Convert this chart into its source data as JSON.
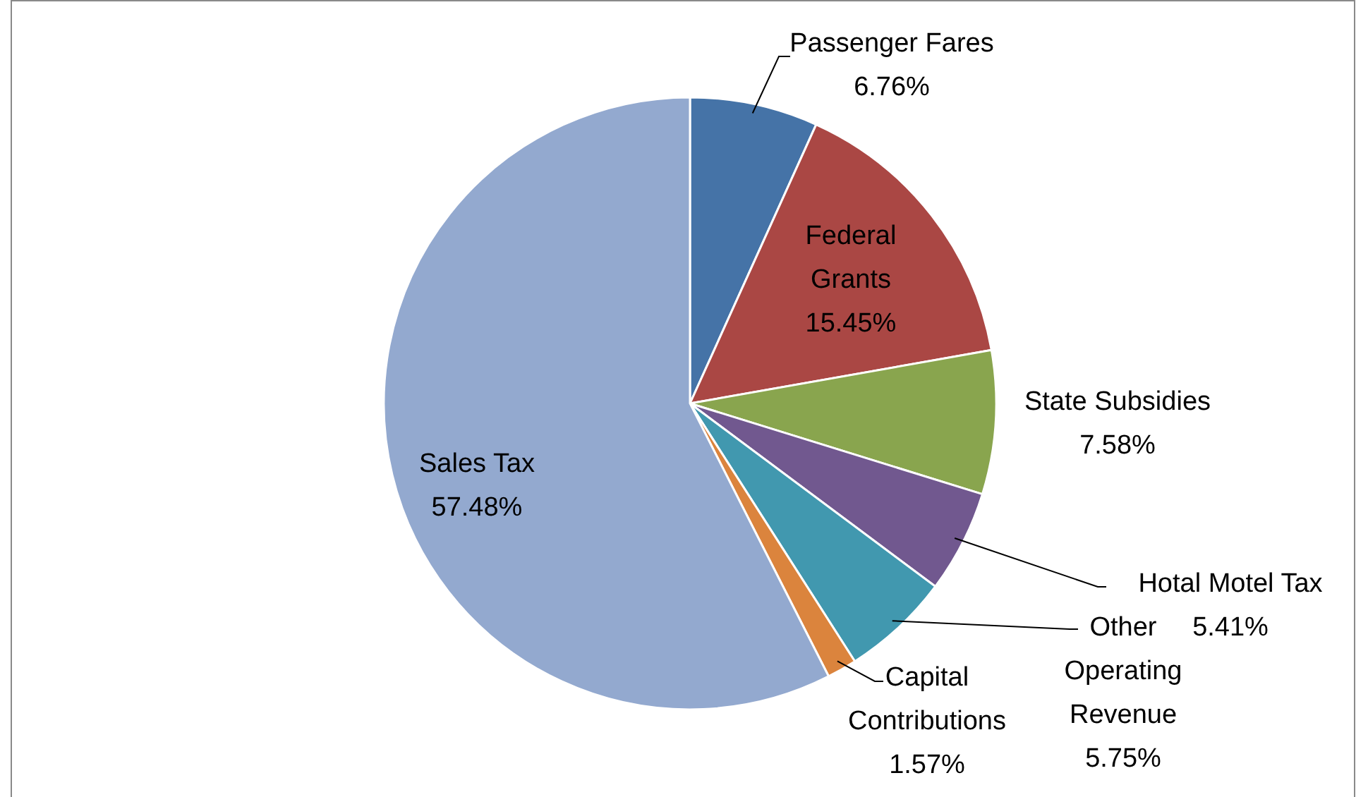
{
  "chart_data": {
    "type": "pie",
    "categories": [
      "Passenger Fares",
      "Federal Grants",
      "State Subsidies",
      "Hotal Motel Tax",
      "Other Operating Revenue",
      "Capital Contributions",
      "Sales Tax"
    ],
    "values": [
      6.76,
      15.45,
      7.58,
      5.41,
      5.75,
      1.57,
      57.48
    ],
    "colors": [
      "#4573a7",
      "#aa4744",
      "#89a54e",
      "#71588f",
      "#4198af",
      "#db843d",
      "#93a9cf"
    ],
    "value_labels": [
      "6.76%",
      "15.45%",
      "7.58%",
      "5.41%",
      "5.75%",
      "1.57%",
      "57.48%"
    ]
  }
}
